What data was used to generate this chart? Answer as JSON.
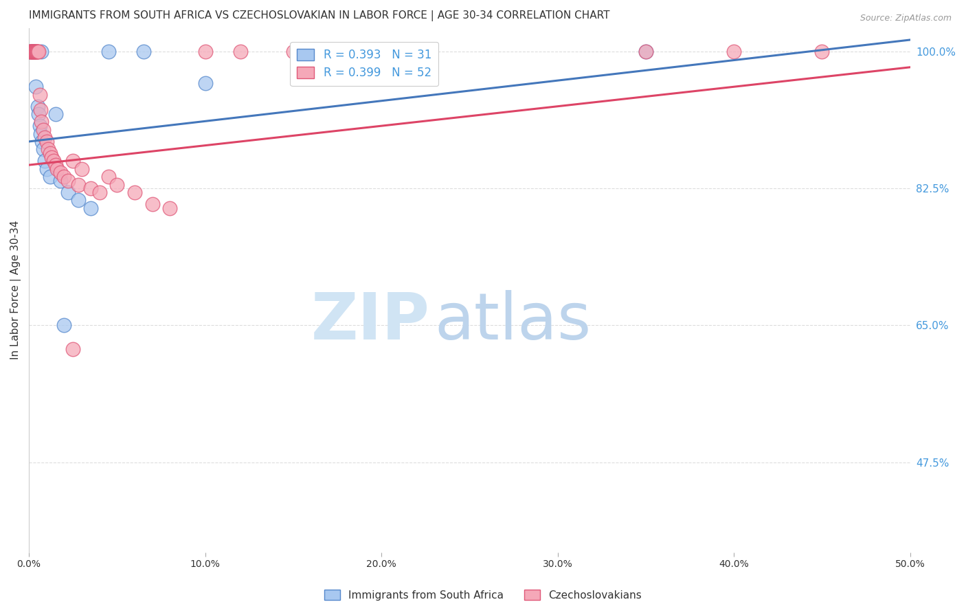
{
  "title": "IMMIGRANTS FROM SOUTH AFRICA VS CZECHOSLOVAKIAN IN LABOR FORCE | AGE 30-34 CORRELATION CHART",
  "source": "Source: ZipAtlas.com",
  "ylabel": "In Labor Force | Age 30-34",
  "yticks": [
    100.0,
    82.5,
    65.0,
    47.5
  ],
  "ytick_labels": [
    "100.0%",
    "82.5%",
    "65.0%",
    "47.5%"
  ],
  "xmin": 0.0,
  "xmax": 50.0,
  "ymin": 36.0,
  "ymax": 103.0,
  "blue_R": 0.393,
  "blue_N": 31,
  "pink_R": 0.399,
  "pink_N": 52,
  "blue_color": "#A8C8F0",
  "pink_color": "#F5A8B8",
  "blue_edge_color": "#5588CC",
  "pink_edge_color": "#E05878",
  "blue_line_color": "#4477BB",
  "pink_line_color": "#DD4466",
  "legend_text_color": "#4499DD",
  "grid_color": "#DDDDDD",
  "background_color": "#FFFFFF",
  "blue_line_x0": 0.0,
  "blue_line_y0": 88.5,
  "blue_line_x1": 50.0,
  "blue_line_y1": 101.5,
  "pink_line_x0": 0.0,
  "pink_line_y0": 85.5,
  "pink_line_x1": 50.0,
  "pink_line_y1": 98.0,
  "blue_scatter_x": [
    0.05,
    0.1,
    0.15,
    0.18,
    0.2,
    0.22,
    0.25,
    0.28,
    0.3,
    0.35,
    0.4,
    0.5,
    0.55,
    0.6,
    0.65,
    0.7,
    0.75,
    0.8,
    0.9,
    1.0,
    1.2,
    1.5,
    1.8,
    2.2,
    2.8,
    3.5,
    4.5,
    6.5,
    10.0,
    35.0,
    2.0
  ],
  "blue_scatter_y": [
    100.0,
    100.0,
    100.0,
    100.0,
    100.0,
    100.0,
    100.0,
    100.0,
    100.0,
    100.0,
    95.5,
    93.0,
    92.0,
    90.5,
    89.5,
    100.0,
    88.5,
    87.5,
    86.0,
    85.0,
    84.0,
    92.0,
    83.5,
    82.0,
    81.0,
    80.0,
    100.0,
    100.0,
    96.0,
    100.0,
    65.0
  ],
  "pink_scatter_x": [
    0.05,
    0.08,
    0.1,
    0.12,
    0.15,
    0.18,
    0.2,
    0.22,
    0.25,
    0.28,
    0.3,
    0.32,
    0.35,
    0.38,
    0.4,
    0.42,
    0.45,
    0.48,
    0.5,
    0.55,
    0.6,
    0.65,
    0.7,
    0.8,
    0.9,
    1.0,
    1.1,
    1.2,
    1.3,
    1.4,
    1.5,
    1.6,
    1.8,
    2.0,
    2.2,
    2.5,
    2.8,
    3.0,
    3.5,
    4.0,
    4.5,
    5.0,
    6.0,
    7.0,
    8.0,
    10.0,
    12.0,
    15.0,
    35.0,
    40.0,
    45.0,
    2.5
  ],
  "pink_scatter_y": [
    100.0,
    100.0,
    100.0,
    100.0,
    100.0,
    100.0,
    100.0,
    100.0,
    100.0,
    100.0,
    100.0,
    100.0,
    100.0,
    100.0,
    100.0,
    100.0,
    100.0,
    100.0,
    100.0,
    100.0,
    94.5,
    92.5,
    91.0,
    90.0,
    89.0,
    88.5,
    87.5,
    87.0,
    86.5,
    86.0,
    85.5,
    85.0,
    84.5,
    84.0,
    83.5,
    86.0,
    83.0,
    85.0,
    82.5,
    82.0,
    84.0,
    83.0,
    82.0,
    80.5,
    80.0,
    100.0,
    100.0,
    100.0,
    100.0,
    100.0,
    100.0,
    62.0
  ],
  "title_fontsize": 11,
  "axis_fontsize": 10,
  "tick_fontsize": 10
}
